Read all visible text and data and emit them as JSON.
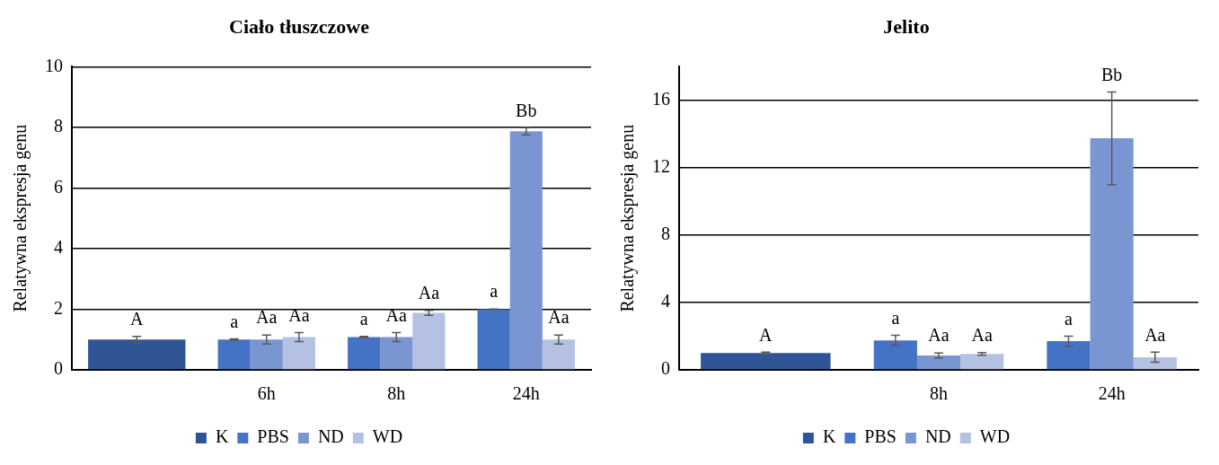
{
  "chart_data": [
    {
      "type": "bar",
      "title": "Ciało tłuszczowe",
      "ylabel": "Relatywna ekspresja genu",
      "categories": [
        null,
        "6h",
        "8h",
        "24h"
      ],
      "ylim": [
        0,
        10
      ],
      "yticks": [
        0,
        2,
        4,
        6,
        8,
        10
      ],
      "grid": "y",
      "legend": "bottom",
      "series": [
        {
          "name": "K",
          "color": "#2f5597",
          "values": [
            1.0,
            null,
            null,
            null
          ],
          "errors": [
            0.1,
            null,
            null,
            null
          ],
          "value_labels": [
            "A",
            null,
            null,
            null
          ]
        },
        {
          "name": "PBS",
          "color": "#4472c4",
          "values": [
            null,
            1.0,
            1.08,
            2.0
          ],
          "errors": [
            null,
            0.02,
            0.02,
            0.01
          ],
          "value_labels": [
            null,
            "a",
            "a",
            "a"
          ]
        },
        {
          "name": "ND",
          "color": "#7a96d2",
          "values": [
            null,
            1.0,
            1.08,
            7.87
          ],
          "errors": [
            null,
            0.15,
            0.15,
            0.12
          ],
          "value_labels": [
            null,
            "Aa",
            "Aa",
            "Bb"
          ]
        },
        {
          "name": "WD",
          "color": "#b4c1e2",
          "values": [
            null,
            1.08,
            1.88,
            1.0
          ],
          "errors": [
            null,
            0.15,
            0.08,
            0.15
          ],
          "value_labels": [
            null,
            "Aa",
            "Aa",
            "Aa"
          ]
        }
      ]
    },
    {
      "type": "bar",
      "title": "Jelito",
      "ylabel": "Relatywna ekspresja genu",
      "categories": [
        null,
        "8h",
        "24h"
      ],
      "ylim": [
        0,
        18
      ],
      "yticks": [
        0,
        4,
        8,
        12,
        16
      ],
      "grid": "y",
      "legend": "bottom",
      "series": [
        {
          "name": "K",
          "color": "#2f5597",
          "values": [
            1.0,
            null,
            null
          ],
          "errors": [
            0.05,
            null,
            null
          ],
          "value_labels": [
            "A",
            null,
            null
          ]
        },
        {
          "name": "PBS",
          "color": "#4472c4",
          "values": [
            null,
            1.75,
            1.7
          ],
          "errors": [
            null,
            0.3,
            0.3
          ],
          "value_labels": [
            null,
            "a",
            "a"
          ]
        },
        {
          "name": "ND",
          "color": "#7a96d2",
          "values": [
            null,
            0.85,
            13.75
          ],
          "errors": [
            null,
            0.15,
            2.75
          ],
          "value_labels": [
            null,
            "Aa",
            "Bb"
          ]
        },
        {
          "name": "WD",
          "color": "#b4c1e2",
          "values": [
            null,
            0.95,
            0.75
          ],
          "errors": [
            null,
            0.08,
            0.3
          ],
          "value_labels": [
            null,
            "Aa",
            "Aa"
          ]
        }
      ]
    }
  ]
}
